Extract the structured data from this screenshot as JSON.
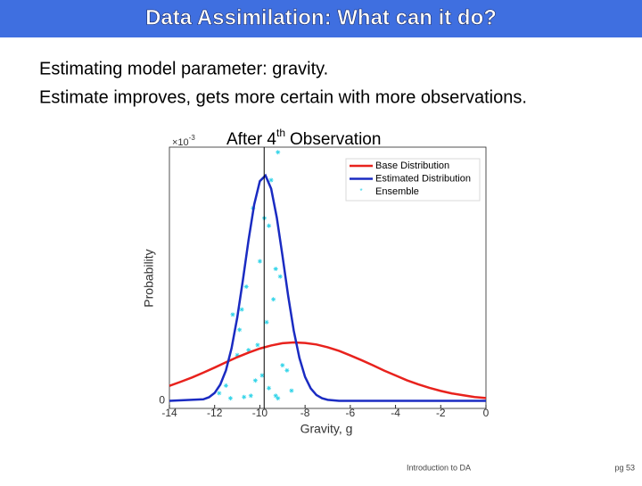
{
  "header": {
    "title": "Data Assimilation: What can it do?"
  },
  "body": {
    "lines": [
      "Estimating model parameter: gravity.",
      "Estimate improves, gets more certain with more observations."
    ]
  },
  "footer": {
    "source": "Introduction to DA",
    "page": "pg 53"
  },
  "chart_data": {
    "type": "line",
    "title": "After 4",
    "title_sup": "th",
    "title_end": "Observation",
    "x_label": "Gravity, g",
    "y_label": "Probability",
    "y_multiplier": "×10",
    "y_exponent": "-3",
    "xlim": [
      -14,
      0
    ],
    "xticks": [
      -14,
      -12,
      -10,
      -8,
      -6,
      -4,
      -2,
      0
    ],
    "ylim": [
      -0.03,
      1.0
    ],
    "yticks": [
      0
    ],
    "legend": "upper right",
    "vline": -9.81,
    "vline_color": "#000000",
    "series": [
      {
        "name": "Base Distribution",
        "color": "#e8221d",
        "x": [
          -14,
          -13.5,
          -13,
          -12.5,
          -12,
          -11.5,
          -11,
          -10.5,
          -10,
          -9.5,
          -9,
          -8.5,
          -8,
          -7.5,
          -7,
          -6.5,
          -6,
          -5.5,
          -5,
          -4.5,
          -4,
          -3.5,
          -3,
          -2.5,
          -2,
          -1.5,
          -1,
          -0.5,
          0
        ],
        "values": [
          0.059,
          0.075,
          0.092,
          0.111,
          0.131,
          0.152,
          0.172,
          0.19,
          0.206,
          0.218,
          0.227,
          0.23,
          0.228,
          0.222,
          0.211,
          0.197,
          0.179,
          0.16,
          0.14,
          0.119,
          0.1,
          0.081,
          0.065,
          0.051,
          0.039,
          0.029,
          0.022,
          0.015,
          0.011
        ]
      },
      {
        "name": "Estimated Distribution",
        "color": "#1a2bc2",
        "x": [
          -14,
          -12.5,
          -12.25,
          -12,
          -11.75,
          -11.5,
          -11.25,
          -11,
          -10.75,
          -10.5,
          -10.25,
          -10,
          -9.75,
          -9.5,
          -9.25,
          -9,
          -8.75,
          -8.5,
          -8.25,
          -8,
          -7.75,
          -7.5,
          -7.25,
          -7,
          -6.5,
          0
        ],
        "values": [
          0,
          0.006,
          0.014,
          0.031,
          0.064,
          0.12,
          0.208,
          0.328,
          0.476,
          0.634,
          0.774,
          0.866,
          0.888,
          0.836,
          0.722,
          0.572,
          0.415,
          0.276,
          0.169,
          0.094,
          0.049,
          0.023,
          0.01,
          0.004,
          0,
          0
        ]
      },
      {
        "name": "Ensemble",
        "color": "#2fd3e8",
        "scatter": true,
        "x": [
          -9.2,
          -9.5,
          -10.3,
          -10.6,
          -9.8,
          -9.6,
          -10.0,
          -9.3,
          -9.1,
          -10.8,
          -11.2,
          -10.9,
          -9.4,
          -9.7,
          -10.1,
          -11.0,
          -9.0,
          -8.8,
          -10.5,
          -9.9,
          -11.5,
          -10.2,
          -9.6,
          -11.8,
          -8.6,
          -10.4,
          -9.3,
          -11.3,
          -10.7,
          -9.2
        ],
        "values": [
          0.98,
          0.87,
          0.76,
          0.45,
          0.72,
          0.69,
          0.55,
          0.52,
          0.49,
          0.36,
          0.34,
          0.28,
          0.4,
          0.31,
          0.22,
          0.18,
          0.14,
          0.12,
          0.2,
          0.1,
          0.06,
          0.08,
          0.05,
          0.03,
          0.04,
          0.02,
          0.02,
          0.01,
          0.015,
          0.01
        ]
      }
    ]
  }
}
